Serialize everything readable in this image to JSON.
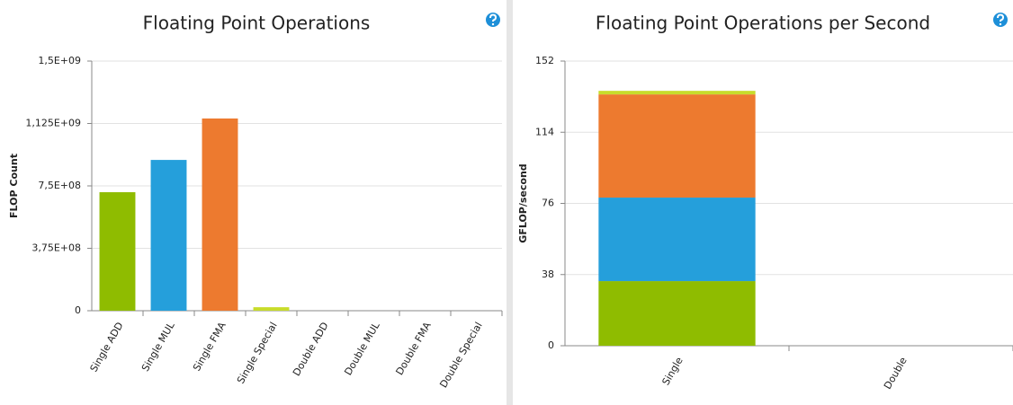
{
  "chart_data": [
    {
      "type": "bar",
      "title": "Floating Point Operations",
      "y_label": "FLOP Count",
      "categories": [
        "Single ADD",
        "Single MUL",
        "Single FMA",
        "Single Special",
        "Double ADD",
        "Double MUL",
        "Double FMA",
        "Double Special"
      ],
      "values": [
        712000000,
        906000000,
        1155000000,
        21000000,
        0,
        0,
        0,
        0
      ],
      "colors": [
        "#8fbc00",
        "#259fdb",
        "#ed7a2f",
        "#c8dc2b",
        "#8fbc00",
        "#259fdb",
        "#ed7a2f",
        "#c8dc2b"
      ],
      "ylim": [
        0,
        1500000000
      ],
      "yticks": [
        0,
        {
          "value": 375000000,
          "label": "3,75E+08"
        },
        {
          "value": 750000000,
          "label": "7,5E+08"
        },
        {
          "value": 1125000000,
          "label": "1,125E+09"
        },
        {
          "value": 1500000000,
          "label": "1,5E+09"
        }
      ],
      "grid": true
    },
    {
      "type": "bar",
      "stacked": true,
      "title": "Floating Point Operations per Second",
      "y_label": "GFLOP/second",
      "categories": [
        "Single",
        "Double"
      ],
      "series": [
        {
          "color": "#8fbc00",
          "values": [
            34.5,
            0
          ]
        },
        {
          "color": "#259fdb",
          "values": [
            44.6,
            0
          ]
        },
        {
          "color": "#ed7a2f",
          "values": [
            55.1,
            0
          ]
        },
        {
          "color": "#c8dc2b",
          "values": [
            1.9,
            0
          ]
        }
      ],
      "ylim": [
        0,
        152
      ],
      "yticks": [
        0,
        38,
        76,
        114,
        152
      ],
      "grid": true
    }
  ]
}
